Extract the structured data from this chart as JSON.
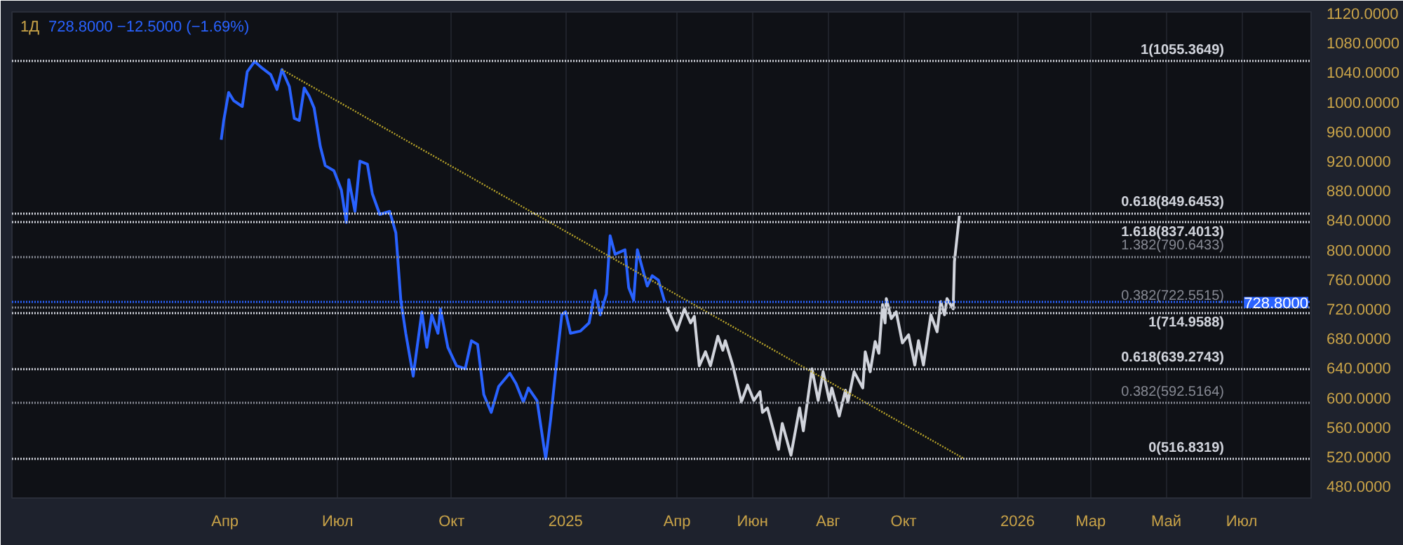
{
  "chart_data": {
    "type": "line",
    "title": "1Д",
    "subtitle": "728.8000  −12.5000 (−1.69%)",
    "xlim": [
      "2023-10-12",
      "2026-08-26"
    ],
    "ylim": [
      464,
      1122
    ],
    "xticks": [
      {
        "value": "2024-04-01",
        "label": "Апр"
      },
      {
        "value": "2024-07-01",
        "label": "Июл"
      },
      {
        "value": "2024-10-01",
        "label": "Окт"
      },
      {
        "value": "2025-01-01",
        "label": "2025"
      },
      {
        "value": "2025-04-01",
        "label": "Апр"
      },
      {
        "value": "2025-06-01",
        "label": "Июн"
      },
      {
        "value": "2025-08-01",
        "label": "Авг"
      },
      {
        "value": "2025-10-01",
        "label": "Окт"
      },
      {
        "value": "2026-01-01",
        "label": "2026"
      },
      {
        "value": "2026-03-01",
        "label": "Мар"
      },
      {
        "value": "2026-05-01",
        "label": "Май"
      },
      {
        "value": "2026-07-01",
        "label": "Июл"
      }
    ],
    "yticks": [
      {
        "value": 480,
        "label": "480.0000"
      },
      {
        "value": 520,
        "label": "520.0000"
      },
      {
        "value": 560,
        "label": "560.0000"
      },
      {
        "value": 600,
        "label": "600.0000"
      },
      {
        "value": 640,
        "label": "640.0000"
      },
      {
        "value": 680,
        "label": "680.0000"
      },
      {
        "value": 720,
        "label": "720.0000"
      },
      {
        "value": 760,
        "label": "760.0000"
      },
      {
        "value": 800,
        "label": "800.0000"
      },
      {
        "value": 840,
        "label": "840.0000"
      },
      {
        "value": 880,
        "label": "880.0000"
      },
      {
        "value": 920,
        "label": "920.0000"
      },
      {
        "value": 960,
        "label": "960.0000"
      },
      {
        "value": 1000,
        "label": "1000.0000"
      },
      {
        "value": 1040,
        "label": "1040.0000"
      },
      {
        "value": 1080,
        "label": "1080.0000"
      },
      {
        "value": 1120,
        "label": "1120.0000"
      }
    ],
    "grid": "x",
    "series": [
      {
        "color": "#2962ff",
        "x": [
          "2024-03-29",
          "2024-03-31",
          "2024-04-04",
          "2024-04-08",
          "2024-04-15",
          "2024-04-19",
          "2024-04-25",
          "2024-05-01",
          "2024-05-08",
          "2024-05-13",
          "2024-05-17",
          "2024-05-23",
          "2024-05-27",
          "2024-05-31",
          "2024-06-04",
          "2024-06-08",
          "2024-06-12",
          "2024-06-17",
          "2024-06-21",
          "2024-06-28",
          "2024-07-04",
          "2024-07-08",
          "2024-07-10",
          "2024-07-15",
          "2024-07-19",
          "2024-07-25",
          "2024-07-29",
          "2024-08-04",
          "2024-08-12",
          "2024-08-17",
          "2024-08-21",
          "2024-08-25",
          "2024-08-31",
          "2024-09-07",
          "2024-09-11",
          "2024-09-15",
          "2024-09-20",
          "2024-09-22",
          "2024-09-28",
          "2024-10-05",
          "2024-10-12",
          "2024-10-17",
          "2024-10-22",
          "2024-10-27",
          "2024-11-02",
          "2024-11-08",
          "2024-11-17",
          "2024-11-22",
          "2024-11-28",
          "2024-12-02",
          "2024-12-09",
          "2024-12-16",
          "2024-12-20",
          "2024-12-25",
          "2024-12-29",
          "2025-01-01",
          "2025-01-05",
          "2025-01-13",
          "2025-01-20",
          "2025-01-25",
          "2025-01-29",
          "2025-02-03",
          "2025-02-06",
          "2025-02-10",
          "2025-02-18",
          "2025-02-21",
          "2025-02-25",
          "2025-02-28",
          "2025-03-05",
          "2025-03-08",
          "2025-03-12",
          "2025-03-17",
          "2025-03-22"
        ],
        "values": [
          949,
          975,
          1013,
          1002,
          994,
          1041,
          1055,
          1046,
          1037,
          1017,
          1044,
          1021,
          978,
          975,
          1019,
          1008,
          992,
          940,
          914,
          907,
          881,
          837,
          895,
          852,
          920,
          916,
          876,
          848,
          852,
          823,
          732,
          687,
          629,
          716,
          668,
          712,
          687,
          720,
          668,
          643,
          639,
          677,
          672,
          604,
          580,
          615,
          633,
          619,
          594,
          613,
          596,
          517,
          571,
          652,
          712,
          716,
          687,
          690,
          701,
          745,
          712,
          740,
          819,
          794,
          800,
          749,
          732,
          800,
          769,
          751,
          765,
          759,
          730
        ]
      },
      {
        "color": "#d1d4dc",
        "x": [
          "2025-03-24",
          "2025-04-01",
          "2025-04-07",
          "2025-04-12",
          "2025-04-15",
          "2025-04-19",
          "2025-04-24",
          "2025-04-28",
          "2025-05-04",
          "2025-05-08",
          "2025-05-10",
          "2025-05-16",
          "2025-05-23",
          "2025-05-28",
          "2025-06-02",
          "2025-06-07",
          "2025-06-09",
          "2025-06-13",
          "2025-06-22",
          "2025-06-25",
          "2025-07-02",
          "2025-07-09",
          "2025-07-12",
          "2025-07-19",
          "2025-07-24",
          "2025-07-28",
          "2025-08-02",
          "2025-08-04",
          "2025-08-10",
          "2025-08-15",
          "2025-08-17",
          "2025-08-22",
          "2025-08-29",
          "2025-08-31",
          "2025-09-04",
          "2025-09-08",
          "2025-09-11",
          "2025-09-14",
          "2025-09-16",
          "2025-09-17",
          "2025-09-21",
          "2025-09-25",
          "2025-09-30",
          "2025-10-05",
          "2025-10-10",
          "2025-10-13",
          "2025-10-17",
          "2025-10-23",
          "2025-10-28",
          "2025-10-31",
          "2025-11-03",
          "2025-11-05",
          "2025-11-10",
          "2025-11-11",
          "2025-11-15"
        ],
        "values": [
          722,
          691,
          720,
          701,
          710,
          643,
          662,
          643,
          683,
          664,
          677,
          644,
          594,
          617,
          596,
          608,
          580,
          586,
          530,
          565,
          522,
          586,
          555,
          639,
          596,
          635,
          596,
          613,
          575,
          610,
          594,
          635,
          613,
          662,
          635,
          676,
          660,
          726,
          701,
          734,
          707,
          716,
          674,
          685,
          644,
          677,
          644,
          712,
          689,
          730,
          712,
          734,
          720,
          784,
          846
        ]
      },
      {
        "color": "#b8a42a",
        "line_style": "dotted",
        "x": [
          "2024-05-17",
          "2025-11-18"
        ],
        "values": [
          1044,
          518
        ]
      }
    ],
    "ref_lines": [
      {
        "axis": "y",
        "value": 1055.3649,
        "label": "1(1055.3649)",
        "color": "#d1d4dc",
        "line_style": "dotted"
      },
      {
        "axis": "y",
        "value": 849.6453,
        "label": "0.618(849.6453)",
        "color": "#d1d4dc",
        "line_style": "dotted"
      },
      {
        "axis": "y",
        "value": 837.4013,
        "label": "1.618(837.4013)",
        "color": "#d1d4dc",
        "line_style": "dotted"
      },
      {
        "axis": "y",
        "value": 790.6433,
        "label": "1.382(790.6433)",
        "color": "#868993",
        "line_style": "dotted"
      },
      {
        "axis": "y",
        "value": 722.5515,
        "label": "0.382(722.5515)",
        "color": "#868993",
        "line_style": "dotted"
      },
      {
        "axis": "y",
        "value": 714.9588,
        "label": "1(714.9588)",
        "color": "#d1d4dc",
        "line_style": "dotted"
      },
      {
        "axis": "y",
        "value": 639.2743,
        "label": "0.618(639.2743)",
        "color": "#d1d4dc",
        "line_style": "dotted"
      },
      {
        "axis": "y",
        "value": 592.5164,
        "label": "0.382(592.5164)",
        "color": "#868993",
        "line_style": "dotted"
      },
      {
        "axis": "y",
        "value": 516.8319,
        "label": "0(516.8319)",
        "color": "#d1d4dc",
        "line_style": "dotted"
      },
      {
        "axis": "y",
        "value": 728.8,
        "label": "728.8000",
        "color": "#2962ff",
        "line_style": "dotted"
      }
    ]
  }
}
